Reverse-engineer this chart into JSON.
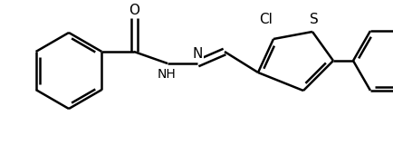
{
  "bg_color": "#ffffff",
  "line_color": "#000000",
  "line_width": 1.8,
  "font_size": 10,
  "figsize": [
    4.34,
    1.6
  ],
  "dpi": 100,
  "xlim": [
    0,
    434
  ],
  "ylim": [
    0,
    160
  ]
}
